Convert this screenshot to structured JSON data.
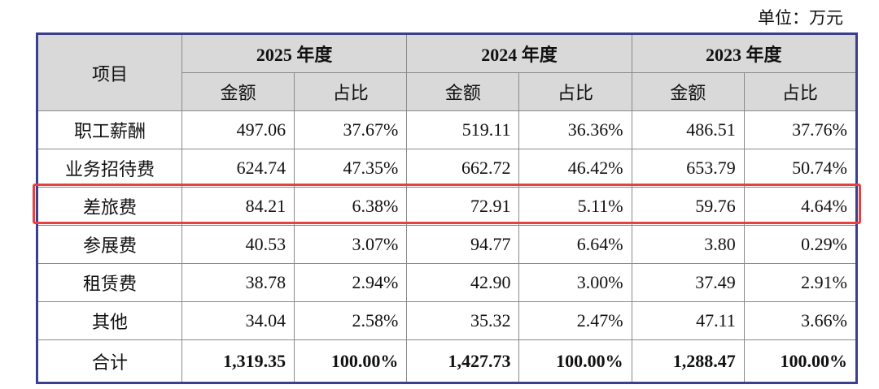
{
  "unit": "单位：万元",
  "table": {
    "header": {
      "item": "项目",
      "years": [
        "2025 年度",
        "2024 年度",
        "2023 年度"
      ],
      "subheaders": [
        "金额",
        "占比",
        "金额",
        "占比",
        "金额",
        "占比"
      ]
    },
    "rows": [
      [
        "职工薪酬",
        "497.06",
        "37.67%",
        "519.11",
        "36.36%",
        "486.51",
        "37.76%"
      ],
      [
        "业务招待费",
        "624.74",
        "47.35%",
        "662.72",
        "46.42%",
        "653.79",
        "50.74%"
      ],
      [
        "差旅费",
        "84.21",
        "6.38%",
        "72.91",
        "5.11%",
        "59.76",
        "4.64%"
      ],
      [
        "参展费",
        "40.53",
        "3.07%",
        "94.77",
        "6.64%",
        "3.80",
        "0.29%"
      ],
      [
        "租赁费",
        "38.78",
        "2.94%",
        "42.90",
        "3.00%",
        "37.49",
        "2.91%"
      ],
      [
        "其他",
        "34.04",
        "2.58%",
        "35.32",
        "2.47%",
        "47.11",
        "3.66%"
      ],
      [
        "合计",
        "1,319.35",
        "100.00%",
        "1,427.73",
        "100.00%",
        "1,288.47",
        "100.00%"
      ]
    ]
  }
}
